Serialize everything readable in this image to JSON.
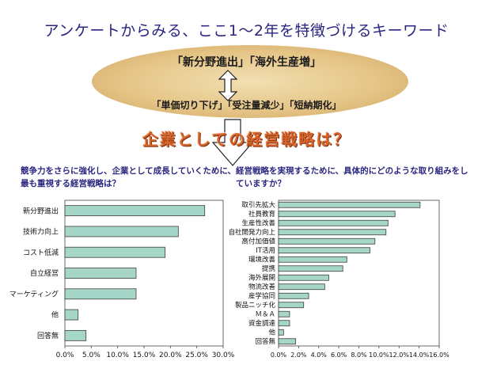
{
  "header": {
    "title": "アンケートからみる、ここ1～2年を特徴づけるキーワード",
    "keywords_top": "「新分野進出」「海外生産増」",
    "keywords_bottom": "「単価切り下げ」「受注量減少」「短納期化」",
    "strategy_heading": "企業としての経営戦略は？"
  },
  "colors": {
    "bar_fill": "#a6d6c8",
    "bar_stroke": "#3d3d3d",
    "title_color": "#2a2580",
    "heading_color": "#d7652a"
  },
  "chart_data": [
    {
      "type": "bar",
      "orientation": "horizontal",
      "title": "競争力をさらに強化し、企業として成長していくために、最も重視する経営戦略は？",
      "categories": [
        "新分野進出",
        "技術力向上",
        "コスト低減",
        "自立経営",
        "マーケティング",
        "他",
        "回答無"
      ],
      "values": [
        26.5,
        21.5,
        19.0,
        13.5,
        13.5,
        2.5,
        4.0
      ],
      "xlim": [
        0,
        30
      ],
      "xticks": [
        "0.0%",
        "5.0%",
        "10.0%",
        "15.0%",
        "20.0%",
        "25.0%",
        "30.0%"
      ],
      "unit": "%",
      "grid": false
    },
    {
      "type": "bar",
      "orientation": "horizontal",
      "title": "経営戦略を実現するために、具体的にどのような取り組みをしていますか？",
      "categories": [
        "取引先拡大",
        "社員教育",
        "生産性改善",
        "自社開発力向上",
        "高付加価値",
        "IT活用",
        "環境改善",
        "提携",
        "海外展開",
        "物流改善",
        "産学協同",
        "製品ニッチ化",
        "Ｍ＆Ａ",
        "資金調達",
        "他",
        "回答無"
      ],
      "values": [
        14.1,
        11.6,
        10.9,
        10.7,
        9.6,
        9.1,
        6.8,
        6.4,
        5.0,
        4.6,
        3.0,
        2.5,
        1.1,
        1.1,
        0.5,
        1.7
      ],
      "xlim": [
        0,
        16
      ],
      "xticks": [
        "0.0%",
        "2.0%",
        "4.0%",
        "6.0%",
        "8.0%",
        "10.0%",
        "12.0%",
        "14.0%",
        "16.0%"
      ],
      "unit": "%",
      "grid": false
    }
  ]
}
